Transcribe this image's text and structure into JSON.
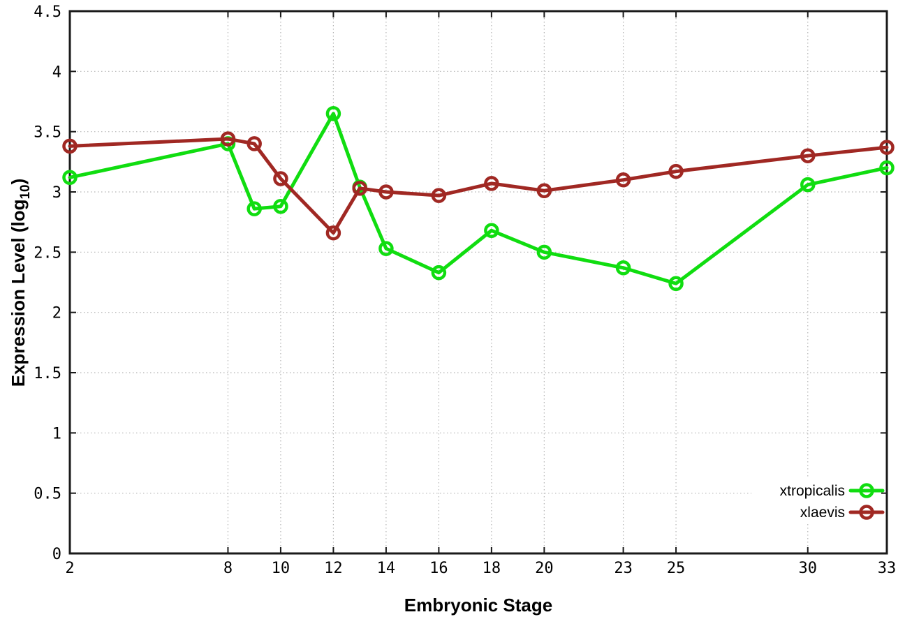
{
  "chart_data": {
    "type": "line",
    "title": "",
    "xlabel": "Embryonic Stage",
    "ylabel": "Expression Level (log10)",
    "ylabel_parts": {
      "prefix": "Expression Level (log",
      "sub": "10",
      "suffix": ")"
    },
    "xlim": [
      2,
      33
    ],
    "ylim": [
      0,
      4.5
    ],
    "x_ticks": [
      2,
      8,
      10,
      12,
      14,
      16,
      18,
      20,
      23,
      25,
      30,
      33
    ],
    "y_ticks": [
      0,
      0.5,
      1,
      1.5,
      2,
      2.5,
      3,
      3.5,
      4,
      4.5
    ],
    "grid": true,
    "grid_style": "dotted",
    "grid_color": "#b4b4b4",
    "border_color": "#1a1a1a",
    "background_color": "#ffffff",
    "legend_position": "bottom-right",
    "x": [
      2,
      8,
      9,
      10,
      12,
      13,
      14,
      16,
      18,
      20,
      23,
      25,
      30,
      33
    ],
    "series": [
      {
        "name": "xtropicalis",
        "color": "#10dd10",
        "marker": "open-circle",
        "values": [
          3.12,
          3.4,
          2.86,
          2.88,
          3.65,
          3.04,
          2.53,
          2.33,
          2.68,
          2.5,
          2.37,
          2.24,
          3.06,
          3.2
        ]
      },
      {
        "name": "xlaevis",
        "color": "#a02823",
        "marker": "open-circle",
        "values": [
          3.38,
          3.44,
          3.4,
          3.11,
          2.66,
          3.03,
          3.0,
          2.97,
          3.07,
          3.01,
          3.1,
          3.17,
          3.3,
          3.37
        ]
      }
    ]
  }
}
